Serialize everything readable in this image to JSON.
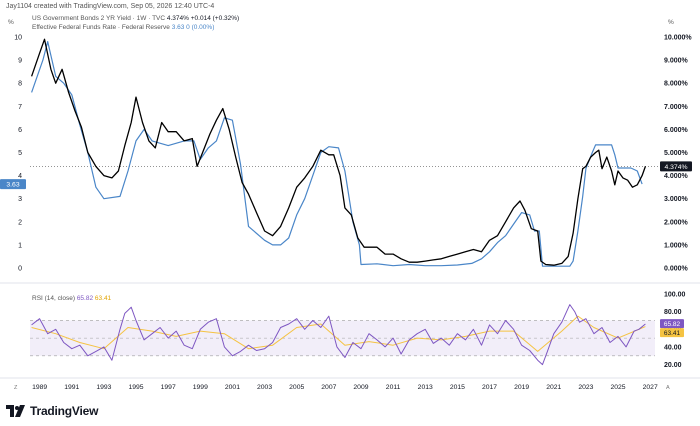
{
  "header": {
    "credit": "Jay1104 created with TradingView.com, Sep 05, 2026 12:40 UTC-4"
  },
  "corners": {
    "left": "Z",
    "right": "A"
  },
  "branding": {
    "name": "TradingView"
  },
  "colors": {
    "bond": "#000000",
    "ffr": "#4a86c8",
    "rsi": "#7e57c2",
    "rsi_ma": "#f5c342",
    "band": "rgba(126,87,194,0.10)",
    "axis_text": "#131722"
  },
  "chart_data": [
    {
      "type": "line",
      "pane": "price",
      "legend": [
        {
          "text": "US Government Bonds 2 YR Yield · 1W · TVC",
          "value": "4.374%",
          "change": "+0.014 (+0.32%)"
        },
        {
          "text": "Effective Federal Funds Rate · Federal Reserve",
          "value": "3.63",
          "change": "0 (0.00%)"
        }
      ],
      "xlabel": "%",
      "ylabel": "%",
      "x_ticks": [
        "1989",
        "1991",
        "1993",
        "1995",
        "1997",
        "1999",
        "2001",
        "2003",
        "2005",
        "2007",
        "2009",
        "2011",
        "2013",
        "2015",
        "2017",
        "2019",
        "2021",
        "2023",
        "2025",
        "2027"
      ],
      "x_range": [
        1988.4,
        2027.3
      ],
      "y_left_ticks": [
        0,
        1,
        2,
        3,
        4,
        5,
        6,
        7,
        8,
        9,
        10
      ],
      "y_right_ticks": [
        "0.000%",
        "1.000%",
        "2.000%",
        "3.000%",
        "4.000%",
        "5.000%",
        "6.000%",
        "7.000%",
        "8.000%",
        "9.000%",
        "10.000%"
      ],
      "ylim": [
        0,
        10
      ],
      "last_value_labels": {
        "left": "3.63",
        "right": "4.374%"
      },
      "series": [
        {
          "name": "US Government Bonds 2 YR Yield",
          "color": "#000000",
          "x": [
            1988.5,
            1989.0,
            1989.3,
            1989.7,
            1990.0,
            1990.4,
            1990.8,
            1991.2,
            1991.6,
            1992.0,
            1992.5,
            1993.0,
            1993.5,
            1993.9,
            1994.3,
            1994.7,
            1995.0,
            1995.4,
            1995.8,
            1996.2,
            1996.6,
            1997.0,
            1997.5,
            1998.0,
            1998.5,
            1998.8,
            1999.2,
            1999.6,
            2000.0,
            2000.4,
            2000.8,
            2001.2,
            2001.6,
            2002.0,
            2002.5,
            2003.0,
            2003.5,
            2004.0,
            2004.5,
            2005.0,
            2005.5,
            2006.0,
            2006.5,
            2007.0,
            2007.3,
            2007.7,
            2008.0,
            2008.4,
            2008.8,
            2009.2,
            2009.6,
            2010.0,
            2010.5,
            2011.0,
            2011.5,
            2012.0,
            2012.5,
            2013.0,
            2013.5,
            2014.0,
            2014.5,
            2015.0,
            2015.5,
            2016.0,
            2016.5,
            2017.0,
            2017.5,
            2018.0,
            2018.5,
            2018.9,
            2019.2,
            2019.6,
            2020.0,
            2020.2,
            2020.5,
            2021.0,
            2021.5,
            2021.9,
            2022.2,
            2022.5,
            2022.8,
            2023.0,
            2023.3,
            2023.6,
            2023.8,
            2024.0,
            2024.3,
            2024.6,
            2024.8,
            2025.0,
            2025.3,
            2025.6,
            2025.9,
            2026.2,
            2026.5,
            2026.7
          ],
          "y": [
            8.3,
            9.3,
            9.9,
            8.6,
            8.0,
            8.6,
            7.6,
            6.8,
            6.1,
            5.0,
            4.4,
            4.0,
            3.9,
            4.2,
            5.3,
            6.3,
            7.4,
            6.3,
            5.5,
            5.2,
            6.3,
            5.9,
            5.9,
            5.5,
            5.6,
            4.4,
            5.1,
            5.8,
            6.4,
            6.9,
            6.0,
            4.8,
            3.7,
            3.2,
            2.4,
            1.6,
            1.4,
            1.8,
            2.6,
            3.5,
            3.9,
            4.4,
            5.1,
            4.9,
            4.9,
            4.0,
            2.6,
            2.3,
            1.3,
            0.9,
            0.9,
            0.9,
            0.6,
            0.6,
            0.4,
            0.25,
            0.25,
            0.3,
            0.35,
            0.4,
            0.5,
            0.6,
            0.7,
            0.8,
            0.7,
            1.2,
            1.4,
            2.0,
            2.6,
            2.9,
            2.5,
            1.7,
            1.6,
            0.3,
            0.15,
            0.12,
            0.2,
            0.5,
            1.5,
            3.0,
            4.3,
            4.4,
            4.8,
            5.0,
            5.1,
            4.3,
            4.8,
            4.2,
            3.6,
            4.2,
            3.9,
            3.8,
            3.5,
            3.6,
            4.0,
            4.4
          ]
        },
        {
          "name": "Effective Federal Funds Rate",
          "color": "#4a86c8",
          "x": [
            1988.5,
            1989.2,
            1989.5,
            1990.0,
            1990.5,
            1991.0,
            1991.5,
            1992.0,
            1992.5,
            1993.0,
            1994.0,
            1994.5,
            1995.0,
            1995.5,
            1996.0,
            1997.0,
            1998.0,
            1998.6,
            1999.0,
            1999.5,
            2000.0,
            2000.5,
            2001.0,
            2001.5,
            2002.0,
            2003.0,
            2003.5,
            2004.0,
            2004.5,
            2005.0,
            2005.5,
            2006.0,
            2006.5,
            2007.0,
            2007.6,
            2008.0,
            2008.5,
            2008.9,
            2009.0,
            2010.0,
            2011.0,
            2012.0,
            2013.0,
            2014.0,
            2015.0,
            2015.9,
            2016.5,
            2017.0,
            2017.5,
            2018.0,
            2018.5,
            2019.0,
            2019.5,
            2019.8,
            2020.1,
            2020.3,
            2021.0,
            2022.0,
            2022.2,
            2022.5,
            2022.8,
            2023.0,
            2023.4,
            2023.6,
            2024.0,
            2024.6,
            2024.8,
            2025.0,
            2025.4,
            2025.8,
            2026.2,
            2026.5
          ],
          "y": [
            7.6,
            9.0,
            9.8,
            8.3,
            8.0,
            7.5,
            6.2,
            5.0,
            3.5,
            3.0,
            3.1,
            4.2,
            5.5,
            6.0,
            5.5,
            5.3,
            5.5,
            5.5,
            4.7,
            5.2,
            5.5,
            6.5,
            6.4,
            4.5,
            1.8,
            1.2,
            1.0,
            1.0,
            1.3,
            2.3,
            3.0,
            4.0,
            5.0,
            5.25,
            5.2,
            4.2,
            2.0,
            1.0,
            0.15,
            0.18,
            0.1,
            0.15,
            0.1,
            0.1,
            0.13,
            0.2,
            0.4,
            0.7,
            1.1,
            1.4,
            1.9,
            2.4,
            2.3,
            1.6,
            1.6,
            0.08,
            0.08,
            0.08,
            0.3,
            1.6,
            3.1,
            4.3,
            5.0,
            5.33,
            5.33,
            5.33,
            4.9,
            4.33,
            4.33,
            4.33,
            4.2,
            3.63
          ]
        }
      ]
    },
    {
      "type": "line",
      "pane": "rsi",
      "legend": [
        {
          "text": "RSI (14, close)",
          "value": "65.82",
          "change": "63.41"
        }
      ],
      "y_ticks": [
        "20.00",
        "40.00",
        "60.00",
        "80.00",
        "100.00"
      ],
      "ylim": [
        15,
        100
      ],
      "bands": [
        30,
        50,
        70
      ],
      "last_value_labels": {
        "rsi": "65.82",
        "ma": "63.41"
      },
      "series": [
        {
          "name": "RSI (14, close)",
          "color": "#7e57c2",
          "x": [
            1988.5,
            1989.0,
            1989.5,
            1990.0,
            1990.5,
            1991.0,
            1991.5,
            1992.0,
            1992.5,
            1993.0,
            1993.5,
            1994.0,
            1994.3,
            1994.7,
            1995.0,
            1995.5,
            1996.0,
            1996.5,
            1997.0,
            1997.5,
            1998.0,
            1998.5,
            1999.0,
            1999.5,
            2000.0,
            2000.5,
            2001.0,
            2001.5,
            2002.0,
            2002.5,
            2003.0,
            2003.5,
            2004.0,
            2004.5,
            2005.0,
            2005.5,
            2006.0,
            2006.5,
            2007.0,
            2007.5,
            2008.0,
            2008.5,
            2009.0,
            2009.5,
            2010.0,
            2010.5,
            2011.0,
            2011.5,
            2012.0,
            2012.5,
            2013.0,
            2013.5,
            2014.0,
            2014.5,
            2015.0,
            2015.5,
            2016.0,
            2016.5,
            2017.0,
            2017.5,
            2018.0,
            2018.5,
            2019.0,
            2019.5,
            2020.0,
            2020.3,
            2020.6,
            2021.0,
            2021.5,
            2022.0,
            2022.3,
            2022.6,
            2023.0,
            2023.5,
            2024.0,
            2024.5,
            2025.0,
            2025.5,
            2026.0,
            2026.3,
            2026.7
          ],
          "y": [
            65,
            72,
            55,
            60,
            45,
            38,
            42,
            30,
            35,
            40,
            25,
            60,
            78,
            85,
            70,
            48,
            55,
            62,
            50,
            58,
            42,
            38,
            60,
            68,
            72,
            40,
            30,
            35,
            42,
            36,
            38,
            45,
            62,
            66,
            72,
            60,
            70,
            62,
            75,
            40,
            28,
            45,
            38,
            55,
            48,
            40,
            50,
            32,
            48,
            55,
            60,
            44,
            50,
            42,
            55,
            48,
            60,
            42,
            65,
            55,
            70,
            60,
            42,
            36,
            25,
            20,
            35,
            55,
            68,
            88,
            80,
            68,
            72,
            55,
            62,
            45,
            52,
            40,
            58,
            60,
            66
          ]
        },
        {
          "name": "RSI MA",
          "color": "#f5c342",
          "x": [
            1988.5,
            1990.0,
            1991.5,
            1993.0,
            1994.5,
            1996.0,
            1997.5,
            1999.0,
            2000.5,
            2002.0,
            2003.5,
            2005.0,
            2006.5,
            2008.0,
            2009.5,
            2011.0,
            2012.5,
            2014.0,
            2015.5,
            2017.0,
            2018.5,
            2020.0,
            2021.5,
            2022.5,
            2023.5,
            2025.0,
            2026.7
          ],
          "y": [
            62,
            55,
            45,
            38,
            62,
            58,
            52,
            58,
            55,
            38,
            42,
            62,
            66,
            42,
            46,
            42,
            50,
            48,
            52,
            58,
            58,
            35,
            58,
            75,
            62,
            50,
            63
          ]
        }
      ]
    }
  ]
}
